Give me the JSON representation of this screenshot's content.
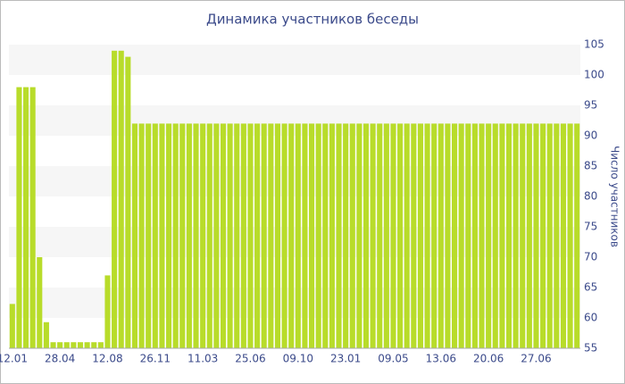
{
  "chart_data": {
    "type": "bar",
    "title": "Динамика участников беседы",
    "y_label": "Число участников",
    "categories": [
      "12.01",
      null,
      null,
      null,
      null,
      null,
      null,
      "28.04",
      null,
      null,
      null,
      null,
      null,
      null,
      "12.08",
      null,
      null,
      null,
      null,
      null,
      null,
      "26.11",
      null,
      null,
      null,
      null,
      null,
      null,
      "11.03",
      null,
      null,
      null,
      null,
      null,
      null,
      "25.06",
      null,
      null,
      null,
      null,
      null,
      null,
      "09.10",
      null,
      null,
      null,
      null,
      null,
      null,
      "23.01",
      null,
      null,
      null,
      null,
      null,
      null,
      "09.05",
      null,
      null,
      null,
      null,
      null,
      null,
      "13.06",
      null,
      null,
      null,
      null,
      null,
      null,
      "20.06",
      null,
      null,
      null,
      null,
      null,
      null,
      "27.06",
      null,
      null,
      null,
      null,
      null,
      null
    ],
    "values": [
      62.3,
      98,
      98,
      98,
      70,
      59.3,
      56,
      56,
      56,
      56,
      56,
      56,
      56,
      56,
      67,
      104,
      104,
      103,
      92,
      92,
      92,
      92,
      92,
      92,
      92,
      92,
      92,
      92,
      92,
      92,
      92,
      92,
      92,
      92,
      92,
      92,
      92,
      92,
      92,
      92,
      92,
      92,
      92,
      92,
      92,
      92,
      92,
      92,
      92,
      92,
      92,
      92,
      92,
      92,
      92,
      92,
      92,
      92,
      92,
      92,
      92,
      92,
      92,
      92,
      92,
      92,
      92,
      92,
      92,
      92,
      92,
      92,
      92,
      92,
      92,
      92,
      92,
      92,
      92,
      92,
      92,
      92,
      92,
      92
    ],
    "color": "#b8dc2a",
    "ylim": [
      55,
      105
    ],
    "yticks": [
      55,
      60,
      65,
      70,
      75,
      80,
      85,
      90,
      95,
      100,
      105
    ],
    "grid": true,
    "y_axis_side": "right"
  }
}
